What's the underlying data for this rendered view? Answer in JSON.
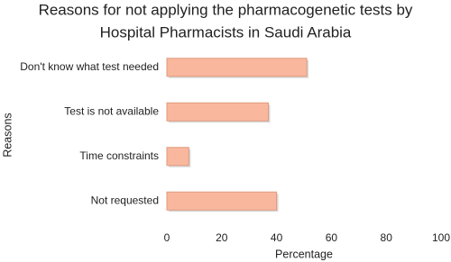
{
  "chart_data": {
    "type": "barh",
    "title": [
      "Reasons for not applying the pharmacogenetic tests by",
      "Hospital Pharmacists in Saudi Arabia"
    ],
    "x_label": "Percentage",
    "y_label": "Reasons",
    "categories": [
      "Don't know what test needed",
      "Test is not available",
      "Time constraints",
      "Not requested"
    ],
    "values": [
      51,
      37,
      8,
      40
    ],
    "color": "#f9b89e",
    "edge_color": "#e09a7e",
    "xlim": [
      0,
      100
    ],
    "xticks": [
      0,
      20,
      40,
      60,
      80,
      100
    ]
  }
}
